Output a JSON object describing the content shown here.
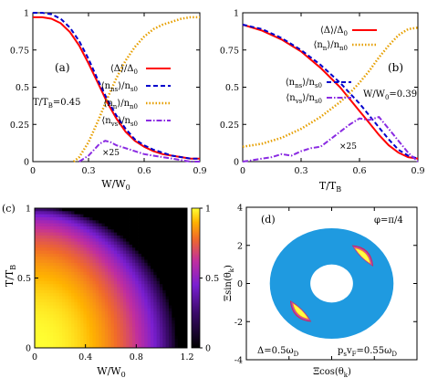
{
  "panels": {
    "a": {
      "label": "(a)",
      "annotation": "T/T",
      "annotation_sub": "B",
      "annotation_tail": "=0.45",
      "scale_note": "×25",
      "xlabel": "W/W",
      "xlabel_sub": "0",
      "xticks": [
        "0",
        "0.3",
        "0.6",
        "0.9"
      ],
      "yticks": [
        "0",
        "0.25",
        "0.5",
        "0.75",
        "1"
      ],
      "legend": [
        {
          "text": "⟨Δ⟩/Δ",
          "sub": "0"
        },
        {
          "text": "⟨n",
          "sub": "ns",
          "tail": "⟩/n",
          "sub2": "s0"
        },
        {
          "text": "⟨n",
          "sub": "n",
          "tail": "⟩/n",
          "sub2": "n0"
        },
        {
          "text": "⟨n",
          "sub": "vs",
          "tail": "⟩/n",
          "sub2": "s0"
        }
      ]
    },
    "b": {
      "label": "(b)",
      "annotation": "W/W",
      "annotation_sub": "0",
      "annotation_tail": "=0.39",
      "scale_note": "×25",
      "xlabel": "T/T",
      "xlabel_sub": "B",
      "xticks": [
        "0",
        "0.3",
        "0.6",
        "0.9"
      ],
      "yticks": [
        "0",
        "0.25",
        "0.5",
        "0.75",
        "1"
      ]
    },
    "c": {
      "label": "(c)",
      "xlabel": "W/W",
      "xlabel_sub": "0",
      "ylabel": "T/T",
      "ylabel_sub": "B",
      "xticks": [
        "0",
        "0.4",
        "0.8",
        "1.2"
      ],
      "yticks": [
        "0",
        "0.5",
        "1"
      ],
      "cbar_ticks": [
        "0",
        "0.5",
        "1"
      ]
    },
    "d": {
      "label": "(d)",
      "phi_label": "φ=π/4",
      "delta_label": "Δ=0.5ω",
      "delta_sub": "D",
      "ps_label": "p",
      "ps_sub": "s",
      "ps_mid": "v",
      "ps_sub2": "F",
      "ps_tail": "=0.55ω",
      "ps_sub3": "D",
      "xlabel": "Ξcos(θ",
      "xlabel_sub": "k",
      "xlabel_tail": ")",
      "ylabel": "Ξsin(θ",
      "ylabel_sub": "k",
      "ylabel_tail": ")",
      "xticks": [
        "-4",
        "-2",
        "0",
        "2",
        "4"
      ],
      "yticks": [
        "-4",
        "-2",
        "0",
        "2",
        "4"
      ]
    }
  },
  "colors": {
    "delta": "#ff0000",
    "ns": "#0000cc",
    "nn": "#e69f00",
    "nvs": "#8a2be2",
    "disk": "#1f9ae0"
  },
  "chart_data": [
    {
      "panel": "a",
      "type": "line",
      "xlim": [
        0,
        0.9
      ],
      "ylim": [
        0,
        1
      ],
      "series": [
        {
          "name": "⟨Δ⟩/Δ₀",
          "x": [
            0,
            0.05,
            0.1,
            0.15,
            0.2,
            0.25,
            0.3,
            0.35,
            0.4,
            0.45,
            0.5,
            0.55,
            0.6,
            0.65,
            0.7,
            0.75,
            0.8,
            0.85,
            0.9
          ],
          "y": [
            0.97,
            0.97,
            0.96,
            0.93,
            0.87,
            0.78,
            0.66,
            0.53,
            0.4,
            0.29,
            0.2,
            0.14,
            0.1,
            0.07,
            0.05,
            0.04,
            0.03,
            0.02,
            0.02
          ]
        },
        {
          "name": "⟨n_ns⟩/n_s0",
          "x": [
            0,
            0.05,
            0.1,
            0.15,
            0.2,
            0.25,
            0.3,
            0.35,
            0.4,
            0.45,
            0.5,
            0.55,
            0.6,
            0.65,
            0.7,
            0.75,
            0.8,
            0.85,
            0.9
          ],
          "y": [
            1.0,
            1.0,
            0.99,
            0.96,
            0.9,
            0.81,
            0.69,
            0.55,
            0.42,
            0.31,
            0.22,
            0.15,
            0.11,
            0.08,
            0.06,
            0.04,
            0.03,
            0.02,
            0.02
          ]
        },
        {
          "name": "⟨n_n⟩/n_n0",
          "x": [
            0.22,
            0.25,
            0.3,
            0.35,
            0.4,
            0.45,
            0.5,
            0.55,
            0.6,
            0.65,
            0.7,
            0.75,
            0.8,
            0.85,
            0.9
          ],
          "y": [
            0.0,
            0.03,
            0.13,
            0.27,
            0.42,
            0.56,
            0.68,
            0.77,
            0.84,
            0.89,
            0.92,
            0.94,
            0.96,
            0.97,
            0.97
          ]
        },
        {
          "name": "⟨n_vs⟩/n_s0",
          "x": [
            0.25,
            0.3,
            0.33,
            0.36,
            0.39,
            0.42,
            0.45,
            0.5,
            0.55,
            0.6,
            0.65,
            0.7,
            0.75,
            0.8,
            0.85,
            0.9
          ],
          "y": [
            0.0,
            0.04,
            0.08,
            0.12,
            0.14,
            0.13,
            0.11,
            0.09,
            0.07,
            0.05,
            0.04,
            0.03,
            0.02,
            0.01,
            0.0,
            0.0
          ]
        }
      ]
    },
    {
      "panel": "b",
      "type": "line",
      "xlim": [
        0,
        0.9
      ],
      "ylim": [
        0,
        1
      ],
      "series": [
        {
          "name": "⟨Δ⟩/Δ₀",
          "x": [
            0,
            0.1,
            0.2,
            0.3,
            0.4,
            0.5,
            0.55,
            0.6,
            0.65,
            0.7,
            0.75,
            0.8,
            0.85,
            0.9
          ],
          "y": [
            0.92,
            0.88,
            0.82,
            0.74,
            0.63,
            0.5,
            0.42,
            0.34,
            0.26,
            0.18,
            0.11,
            0.06,
            0.03,
            0.02
          ]
        },
        {
          "name": "⟨n_ns⟩/n_s0",
          "x": [
            0,
            0.1,
            0.2,
            0.3,
            0.4,
            0.5,
            0.55,
            0.6,
            0.65,
            0.7,
            0.75,
            0.8,
            0.85,
            0.9
          ],
          "y": [
            0.92,
            0.89,
            0.83,
            0.75,
            0.65,
            0.53,
            0.46,
            0.39,
            0.31,
            0.23,
            0.15,
            0.08,
            0.04,
            0.02
          ]
        },
        {
          "name": "⟨n_n⟩/n_n0",
          "x": [
            0,
            0.1,
            0.2,
            0.3,
            0.4,
            0.5,
            0.55,
            0.6,
            0.65,
            0.7,
            0.75,
            0.8,
            0.85,
            0.9
          ],
          "y": [
            0.1,
            0.12,
            0.16,
            0.22,
            0.3,
            0.4,
            0.46,
            0.53,
            0.61,
            0.7,
            0.78,
            0.85,
            0.89,
            0.9
          ]
        },
        {
          "name": "⟨n_vs⟩/n_s0",
          "x": [
            0,
            0.05,
            0.1,
            0.15,
            0.2,
            0.25,
            0.3,
            0.35,
            0.4,
            0.45,
            0.5,
            0.55,
            0.6,
            0.65,
            0.7,
            0.75,
            0.8,
            0.85,
            0.9
          ],
          "y": [
            0.0,
            0.01,
            0.02,
            0.03,
            0.05,
            0.04,
            0.07,
            0.09,
            0.1,
            0.15,
            0.2,
            0.25,
            0.29,
            0.28,
            0.3,
            0.22,
            0.14,
            0.06,
            0.0
          ]
        }
      ]
    },
    {
      "panel": "c",
      "type": "heatmap",
      "xlim": [
        0,
        1.2
      ],
      "ylim": [
        0,
        1
      ],
      "zlim": [
        0,
        1
      ]
    },
    {
      "panel": "d",
      "type": "scatter",
      "xlim": [
        -4,
        4
      ],
      "ylim": [
        -4,
        4
      ],
      "ring": {
        "inner_radius": 1.0,
        "outer_radius": 2.9
      }
    }
  ]
}
